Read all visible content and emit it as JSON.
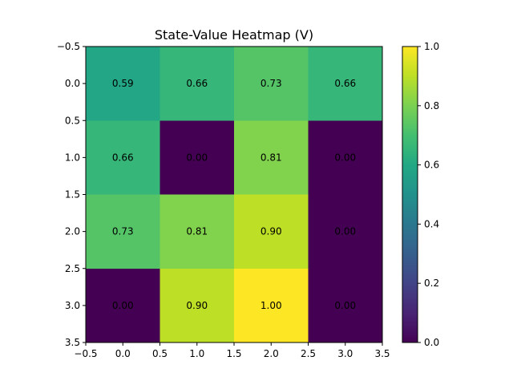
{
  "chart_data": {
    "type": "heatmap",
    "title": "State-Value Heatmap (V)",
    "xlabel": "",
    "ylabel": "",
    "rows": [
      0,
      1,
      2,
      3
    ],
    "cols": [
      0,
      1,
      2,
      3
    ],
    "values": [
      [
        0.59,
        0.66,
        0.73,
        0.66
      ],
      [
        0.66,
        0.0,
        0.81,
        0.0
      ],
      [
        0.73,
        0.81,
        0.9,
        0.0
      ],
      [
        0.0,
        0.9,
        1.0,
        0.0
      ]
    ],
    "cell_labels": [
      [
        "0.59",
        "0.66",
        "0.73",
        "0.66"
      ],
      [
        "0.66",
        "0.00",
        "0.81",
        "0.00"
      ],
      [
        "0.73",
        "0.81",
        "0.90",
        "0.00"
      ],
      [
        "0.00",
        "0.90",
        "1.00",
        "0.00"
      ]
    ],
    "xlim": [
      -0.5,
      3.5
    ],
    "ylim": [
      3.5,
      -0.5
    ],
    "x_ticks": [
      "−0.5",
      "0.0",
      "0.5",
      "1.0",
      "1.5",
      "2.0",
      "2.5",
      "3.0",
      "3.5"
    ],
    "y_ticks": [
      "−0.5",
      "0.0",
      "0.5",
      "1.0",
      "1.5",
      "2.0",
      "2.5",
      "3.0",
      "3.5"
    ],
    "colorbar": {
      "range": [
        0.0,
        1.0
      ],
      "ticks": [
        "0.0",
        "0.2",
        "0.4",
        "0.6",
        "0.8",
        "1.0"
      ],
      "colormap": "viridis"
    },
    "grid": false,
    "legend": "none"
  }
}
